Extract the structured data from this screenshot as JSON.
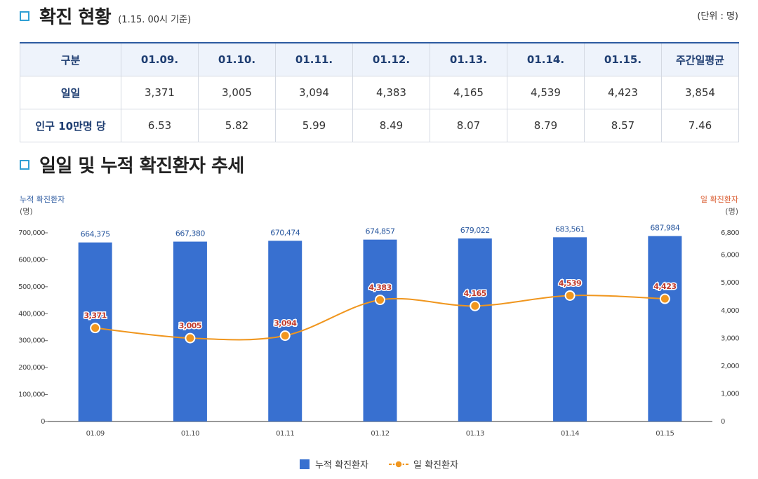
{
  "section1": {
    "title": "확진 현황",
    "subtitle": "(1.15. 00시 기준)",
    "unit": "(단위 : 명)"
  },
  "table": {
    "headers": [
      "구분",
      "01.09.",
      "01.10.",
      "01.11.",
      "01.12.",
      "01.13.",
      "01.14.",
      "01.15.",
      "주간일평균"
    ],
    "rows": [
      {
        "label": "일일",
        "cells": [
          "3,371",
          "3,005",
          "3,094",
          "4,383",
          "4,165",
          "4,539",
          "4,423",
          "3,854"
        ]
      },
      {
        "label": "인구 10만명 당",
        "cells": [
          "6.53",
          "5.82",
          "5.99",
          "8.49",
          "8.07",
          "8.79",
          "8.57",
          "7.46"
        ]
      }
    ]
  },
  "section2": {
    "title": "일일 및 누적 확진환자 추세"
  },
  "chart_data": {
    "type": "bar",
    "categories": [
      "01.09",
      "01.10",
      "01.11",
      "01.12",
      "01.13",
      "01.14",
      "01.15"
    ],
    "series": [
      {
        "name": "누적 확진환자",
        "type": "bar",
        "axis": "left",
        "values": [
          664375,
          667380,
          670474,
          674857,
          679022,
          683561,
          687984
        ]
      },
      {
        "name": "일 확진환자",
        "type": "line",
        "axis": "right",
        "values": [
          3371,
          3005,
          3094,
          4383,
          4165,
          4539,
          4423
        ]
      }
    ],
    "bar_labels": [
      "664,375",
      "667,380",
      "670,474",
      "674,857",
      "679,022",
      "683,561",
      "687,984"
    ],
    "line_labels": [
      "3,371",
      "3,005",
      "3,094",
      "4,383",
      "4,165",
      "4,539",
      "4,423"
    ],
    "ylabel_left": "누적 확진환자",
    "ylabel_left_unit": "(명)",
    "ylabel_right": "일 확진환자",
    "ylabel_right_unit": "(명)",
    "ylim_left": [
      0,
      700000
    ],
    "ylim_right": [
      0,
      6800
    ],
    "yticks_left": [
      "0",
      "100,000",
      "200,000",
      "300,000",
      "400,000",
      "500,000",
      "600,000",
      "700,000"
    ],
    "yticks_right": [
      "0",
      "1,000",
      "2,000",
      "3,000",
      "4,000",
      "5,000",
      "6,000",
      "6,800"
    ],
    "legend_position": "bottom",
    "grid": false,
    "colors": {
      "bar": "#3870d0",
      "line": "#f0961e",
      "line_label": "#c0392b",
      "bar_label": "#2c5aa0",
      "left_axis": "#2c5aa0",
      "right_axis": "#d9582b"
    }
  }
}
